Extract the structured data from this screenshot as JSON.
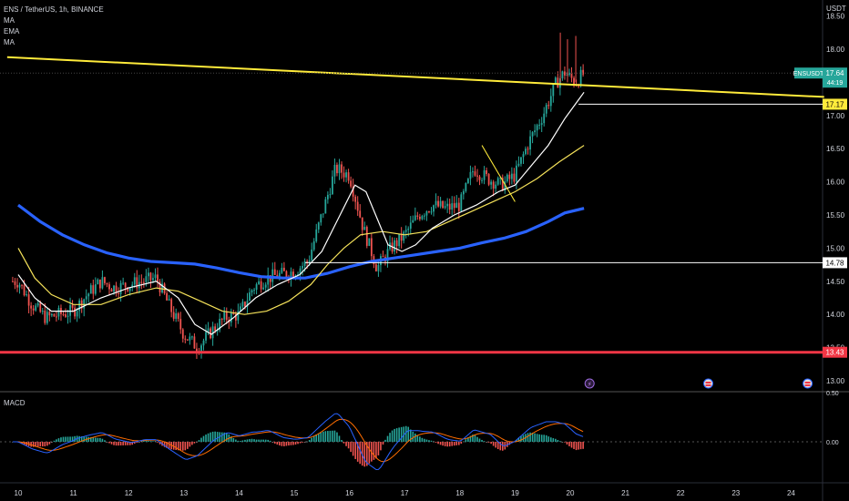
{
  "header": {
    "symbol_line": "ENS / TetherUS, 1h, BINANCE",
    "indicators": [
      "MA",
      "EMA",
      "MA"
    ],
    "unit": "USDT"
  },
  "price_tags": {
    "symbol": "ENSUSDT",
    "last": "17.64",
    "countdown": "44:19",
    "yellow_level": "17.17",
    "white_level": "14.78",
    "red_level": "13.43"
  },
  "colors": {
    "background": "#000000",
    "up": "#26a69a",
    "down": "#ef5350",
    "ma_fast": "#ffffff",
    "ema": "#f5e25a",
    "ma_slow": "#2962ff",
    "trendline": "#ffeb3b",
    "support": "#f23645",
    "macd_line": "#2962ff",
    "signal_line": "#ff6d00"
  },
  "macd": {
    "title": "MACD",
    "axis_labels": [
      "0.50",
      "0.00"
    ]
  },
  "events": {
    "icons": [
      "lightning-icon",
      "us-flag-icon",
      "us-flag-icon"
    ]
  },
  "chart_data": {
    "type": "candlestick",
    "y_ticks": [
      "18.50",
      "18.00",
      "17.50",
      "17.00",
      "16.50",
      "16.00",
      "15.50",
      "15.00",
      "14.50",
      "14.00",
      "13.50",
      "13.00"
    ],
    "y_tick_values": [
      18.5,
      18.0,
      17.5,
      17.0,
      16.5,
      16.0,
      15.5,
      15.0,
      14.5,
      14.0,
      13.5,
      13.0
    ],
    "x_ticks": [
      "10",
      "11",
      "12",
      "13",
      "14",
      "15",
      "16",
      "17",
      "18",
      "19",
      "20",
      "21",
      "22",
      "23",
      "24"
    ],
    "ylim": [
      12.9,
      18.6
    ],
    "close_path": [
      [
        10.0,
        14.5
      ],
      [
        10.25,
        14.15
      ],
      [
        10.5,
        13.95
      ],
      [
        10.75,
        14.0
      ],
      [
        11.0,
        14.05
      ],
      [
        11.25,
        14.3
      ],
      [
        11.5,
        14.5
      ],
      [
        11.75,
        14.4
      ],
      [
        12.0,
        14.45
      ],
      [
        12.25,
        14.5
      ],
      [
        12.5,
        14.55
      ],
      [
        12.75,
        14.1
      ],
      [
        13.0,
        13.7
      ],
      [
        13.25,
        13.5
      ],
      [
        13.5,
        13.75
      ],
      [
        13.75,
        13.95
      ],
      [
        14.0,
        14.0
      ],
      [
        14.25,
        14.4
      ],
      [
        14.5,
        14.55
      ],
      [
        14.75,
        14.6
      ],
      [
        15.0,
        14.65
      ],
      [
        15.25,
        14.8
      ],
      [
        15.5,
        15.5
      ],
      [
        15.75,
        16.2
      ],
      [
        16.0,
        16.1
      ],
      [
        16.25,
        15.3
      ],
      [
        16.5,
        14.7
      ],
      [
        16.75,
        15.0
      ],
      [
        17.0,
        15.2
      ],
      [
        17.25,
        15.5
      ],
      [
        17.5,
        15.65
      ],
      [
        17.75,
        15.6
      ],
      [
        18.0,
        15.65
      ],
      [
        18.25,
        16.2
      ],
      [
        18.5,
        16.05
      ],
      [
        18.75,
        15.95
      ],
      [
        19.0,
        16.1
      ],
      [
        19.25,
        16.6
      ],
      [
        19.5,
        17.0
      ],
      [
        19.75,
        17.5
      ],
      [
        19.9,
        17.65
      ],
      [
        20.1,
        17.5
      ],
      [
        20.25,
        17.64
      ]
    ],
    "trendline": {
      "points": [
        [
          9.8,
          17.88
        ],
        [
          24.6,
          17.28
        ]
      ]
    },
    "ma_fast_path": [
      [
        10.0,
        14.6
      ],
      [
        10.3,
        14.25
      ],
      [
        10.6,
        14.05
      ],
      [
        11.0,
        14.05
      ],
      [
        11.5,
        14.25
      ],
      [
        12.0,
        14.4
      ],
      [
        12.5,
        14.5
      ],
      [
        12.9,
        14.25
      ],
      [
        13.2,
        13.85
      ],
      [
        13.5,
        13.7
      ],
      [
        13.9,
        13.95
      ],
      [
        14.3,
        14.25
      ],
      [
        14.7,
        14.45
      ],
      [
        15.1,
        14.6
      ],
      [
        15.5,
        14.95
      ],
      [
        15.8,
        15.45
      ],
      [
        16.1,
        15.95
      ],
      [
        16.3,
        15.85
      ],
      [
        16.5,
        15.45
      ],
      [
        16.7,
        15.05
      ],
      [
        16.95,
        14.95
      ],
      [
        17.2,
        15.05
      ],
      [
        17.5,
        15.3
      ],
      [
        17.9,
        15.5
      ],
      [
        18.3,
        15.65
      ],
      [
        18.7,
        15.85
      ],
      [
        19.0,
        15.95
      ],
      [
        19.3,
        16.25
      ],
      [
        19.6,
        16.55
      ],
      [
        19.9,
        16.95
      ],
      [
        20.25,
        17.35
      ]
    ],
    "ema_path": [
      [
        10.0,
        15.0
      ],
      [
        10.3,
        14.55
      ],
      [
        10.6,
        14.3
      ],
      [
        11.0,
        14.15
      ],
      [
        11.5,
        14.15
      ],
      [
        12.0,
        14.3
      ],
      [
        12.5,
        14.4
      ],
      [
        12.9,
        14.35
      ],
      [
        13.3,
        14.2
      ],
      [
        13.7,
        14.05
      ],
      [
        14.1,
        14.0
      ],
      [
        14.5,
        14.05
      ],
      [
        14.9,
        14.2
      ],
      [
        15.3,
        14.45
      ],
      [
        15.6,
        14.75
      ],
      [
        15.9,
        15.0
      ],
      [
        16.2,
        15.2
      ],
      [
        16.6,
        15.25
      ],
      [
        17.0,
        15.2
      ],
      [
        17.4,
        15.25
      ],
      [
        17.8,
        15.4
      ],
      [
        18.2,
        15.55
      ],
      [
        18.6,
        15.7
      ],
      [
        19.0,
        15.85
      ],
      [
        19.4,
        16.05
      ],
      [
        19.8,
        16.3
      ],
      [
        20.25,
        16.55
      ]
    ],
    "ma_slow_path": [
      [
        10.0,
        15.65
      ],
      [
        10.4,
        15.4
      ],
      [
        10.8,
        15.2
      ],
      [
        11.2,
        15.05
      ],
      [
        11.6,
        14.93
      ],
      [
        12.0,
        14.85
      ],
      [
        12.4,
        14.8
      ],
      [
        12.8,
        14.78
      ],
      [
        13.2,
        14.76
      ],
      [
        13.6,
        14.7
      ],
      [
        14.0,
        14.63
      ],
      [
        14.4,
        14.57
      ],
      [
        14.8,
        14.55
      ],
      [
        15.2,
        14.55
      ],
      [
        15.6,
        14.62
      ],
      [
        16.0,
        14.72
      ],
      [
        16.4,
        14.8
      ],
      [
        16.8,
        14.85
      ],
      [
        17.2,
        14.9
      ],
      [
        17.6,
        14.95
      ],
      [
        18.0,
        15.0
      ],
      [
        18.4,
        15.08
      ],
      [
        18.8,
        15.15
      ],
      [
        19.2,
        15.25
      ],
      [
        19.6,
        15.4
      ],
      [
        19.9,
        15.53
      ],
      [
        20.25,
        15.6
      ]
    ]
  }
}
